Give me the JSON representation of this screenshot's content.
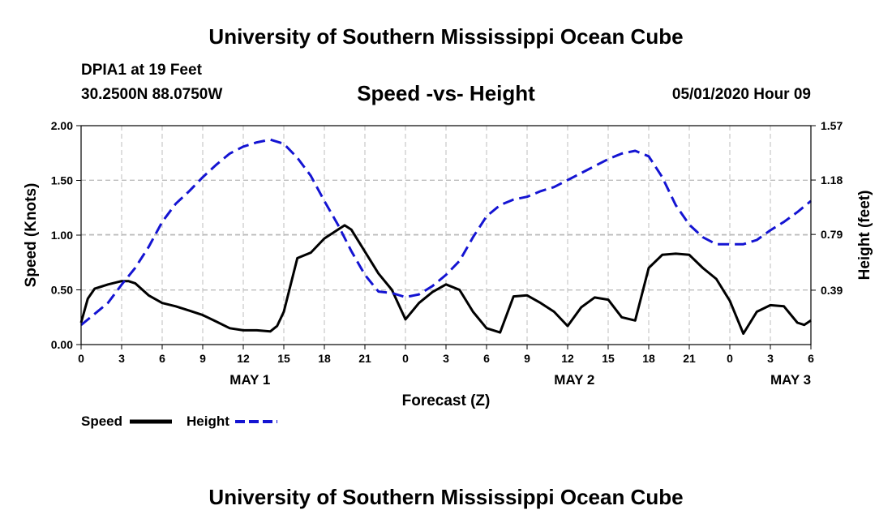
{
  "header": {
    "title": "University of Southern Mississippi Ocean Cube",
    "station": "DPIA1 at 19 Feet",
    "coords": "30.2500N 88.0750W",
    "datetime": "05/01/2020 Hour 09"
  },
  "footer": {
    "title": "University of Southern Mississippi Ocean Cube"
  },
  "colors": {
    "speed": "#000000",
    "height": "#1414d2",
    "grid": "#bdbdbd"
  },
  "chart_data": {
    "type": "line",
    "title": "Speed -vs- Height",
    "xlabel": "Forecast (Z)",
    "ylabel": "Speed (Knots)",
    "y2label": "Height (feet)",
    "x_unit": "forecast hours",
    "xlim": [
      0,
      54
    ],
    "ylim": [
      0,
      2.0
    ],
    "y2lim": [
      0,
      1.57
    ],
    "x_ticks": [
      0,
      3,
      6,
      9,
      12,
      15,
      18,
      21,
      24,
      27,
      30,
      33,
      36,
      39,
      42,
      45,
      48,
      51,
      54
    ],
    "x_tick_labels": [
      "0",
      "3",
      "6",
      "9",
      "12",
      "15",
      "18",
      "21",
      "0",
      "3",
      "6",
      "9",
      "12",
      "15",
      "18",
      "21",
      "0",
      "3",
      "6"
    ],
    "date_labels": [
      {
        "x": 12.5,
        "label": "MAY 1"
      },
      {
        "x": 36.5,
        "label": "MAY 2"
      },
      {
        "x": 52.5,
        "label": "MAY 3"
      }
    ],
    "y_ticks": [
      0,
      0.5,
      1.0,
      1.5,
      2.0
    ],
    "y_tick_labels": [
      "0.00",
      "0.50",
      "1.00",
      "1.50",
      "2.00"
    ],
    "y2_ticks": [
      0.39,
      0.79,
      1.18,
      1.57
    ],
    "y2_tick_labels": [
      "0.39",
      "0.79",
      "1.18",
      "1.57"
    ],
    "grid": true,
    "series": [
      {
        "name": "Speed",
        "axis": "left",
        "style": "solid",
        "x": [
          0,
          0.5,
          1,
          2,
          3,
          3.5,
          4,
          5,
          6,
          7,
          8,
          9,
          10,
          11,
          12,
          13,
          14,
          14.5,
          15,
          16,
          17,
          18,
          19,
          19.5,
          20,
          21,
          22,
          23,
          24,
          25,
          26,
          27,
          28,
          29,
          30,
          31,
          32,
          33,
          34,
          35,
          36,
          37,
          38,
          39,
          40,
          41,
          42,
          43,
          44,
          45,
          46,
          47,
          48,
          49,
          50,
          51,
          52,
          53,
          53.5,
          54
        ],
        "values": [
          0.2,
          0.42,
          0.51,
          0.55,
          0.58,
          0.58,
          0.56,
          0.45,
          0.38,
          0.35,
          0.31,
          0.27,
          0.21,
          0.15,
          0.13,
          0.13,
          0.12,
          0.17,
          0.3,
          0.79,
          0.84,
          0.97,
          1.05,
          1.09,
          1.05,
          0.85,
          0.65,
          0.5,
          0.23,
          0.38,
          0.48,
          0.55,
          0.5,
          0.3,
          0.15,
          0.11,
          0.44,
          0.45,
          0.38,
          0.3,
          0.17,
          0.34,
          0.43,
          0.41,
          0.25,
          0.22,
          0.7,
          0.82,
          0.83,
          0.82,
          0.7,
          0.6,
          0.4,
          0.1,
          0.3,
          0.36,
          0.35,
          0.2,
          0.18,
          0.22
        ]
      },
      {
        "name": "Height",
        "axis": "right",
        "style": "dashed",
        "x": [
          0,
          1,
          2,
          3,
          4,
          5,
          6,
          7,
          8,
          9,
          10,
          11,
          12,
          13,
          14,
          15,
          16,
          17,
          18,
          19,
          20,
          21,
          22,
          23,
          24,
          25,
          26,
          27,
          28,
          29,
          30,
          31,
          32,
          33,
          34,
          35,
          36,
          37,
          38,
          39,
          40,
          41,
          42,
          43,
          44,
          45,
          46,
          47,
          48,
          49,
          50,
          51,
          52,
          53,
          54
        ],
        "values": [
          0.14,
          0.22,
          0.3,
          0.43,
          0.55,
          0.7,
          0.88,
          1.01,
          1.1,
          1.2,
          1.29,
          1.37,
          1.42,
          1.45,
          1.47,
          1.44,
          1.34,
          1.21,
          1.03,
          0.86,
          0.67,
          0.5,
          0.38,
          0.37,
          0.34,
          0.36,
          0.42,
          0.5,
          0.6,
          0.77,
          0.92,
          1.0,
          1.04,
          1.06,
          1.1,
          1.13,
          1.18,
          1.23,
          1.28,
          1.33,
          1.37,
          1.39,
          1.35,
          1.2,
          1.0,
          0.86,
          0.77,
          0.72,
          0.72,
          0.72,
          0.75,
          0.82,
          0.88,
          0.95,
          1.03
        ]
      }
    ],
    "legend": [
      {
        "label": "Speed",
        "style": "solid"
      },
      {
        "label": "Height",
        "style": "dashed"
      }
    ],
    "legend_placement": "bottom-left"
  }
}
